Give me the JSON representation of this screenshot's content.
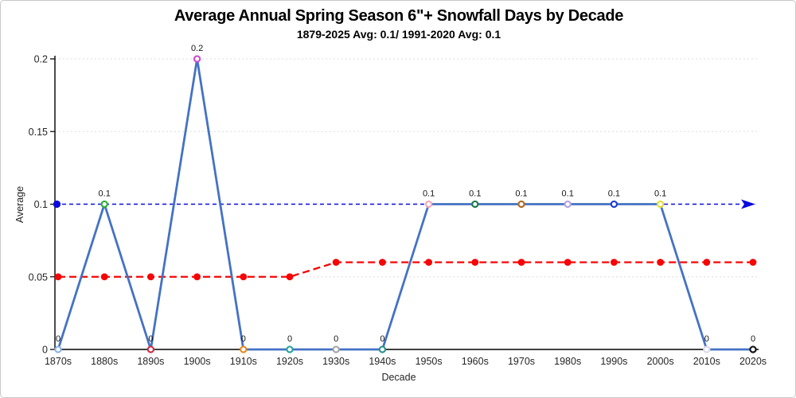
{
  "chart_data": {
    "type": "line",
    "title": "Average Annual Spring Season 6\"+ Snowfall Days by Decade",
    "subtitle": "1879-2025 Avg: 0.1/ 1991-2020 Avg: 0.1",
    "xlabel": "Decade",
    "ylabel": "Average",
    "ylim": [
      0,
      0.2
    ],
    "yticks": [
      0,
      0.05,
      0.1,
      0.15,
      0.2
    ],
    "ytick_labels": [
      "0",
      "0.05",
      "0.1",
      "0.15",
      "0.2"
    ],
    "categories": [
      "1870s",
      "1880s",
      "1890s",
      "1900s",
      "1910s",
      "1920s",
      "1930s",
      "1940s",
      "1950s",
      "1960s",
      "1970s",
      "1980s",
      "1990s",
      "2000s",
      "2010s",
      "2020s"
    ],
    "grid": true,
    "legend": "none",
    "series": [
      {
        "name": "decade-average-line",
        "role": "main",
        "color": "#4472c4",
        "values": [
          0,
          0.1,
          0,
          0.2,
          0,
          0,
          0,
          0,
          0.1,
          0.1,
          0.1,
          0.1,
          0.1,
          0.1,
          0,
          0
        ],
        "point_labels": [
          "0",
          "0.1",
          "0",
          "0.2",
          "0",
          "0",
          "0",
          "0",
          "0.1",
          "0.1",
          "0.1",
          "0.1",
          "0.1",
          "0.1",
          "0",
          "0"
        ],
        "marker_colors": [
          "#8fb4e3",
          "#2eae35",
          "#d03048",
          "#cc4ccc",
          "#e8891d",
          "#27a59a",
          "#a6a6a6",
          "#2b9390",
          "#f2a9b8",
          "#1e7a46",
          "#b06a21",
          "#b3a3e0",
          "#1f3bd4",
          "#e3de35",
          "#dcd9ef",
          "#111111"
        ]
      },
      {
        "name": "blue-dashed-reference-line",
        "role": "reference-line",
        "color": "#0a0ae0",
        "value": 0.1,
        "style": "dashed-arrow"
      },
      {
        "name": "red-dashed-trend-line",
        "role": "trend-line",
        "color": "#f50505",
        "values": [
          0.05,
          0.05,
          0.05,
          0.05,
          0.05,
          0.05,
          0.06,
          0.06,
          0.06,
          0.06,
          0.06,
          0.06,
          0.06,
          0.06,
          0.06,
          0.06
        ],
        "style": "dashed-dots"
      }
    ]
  }
}
